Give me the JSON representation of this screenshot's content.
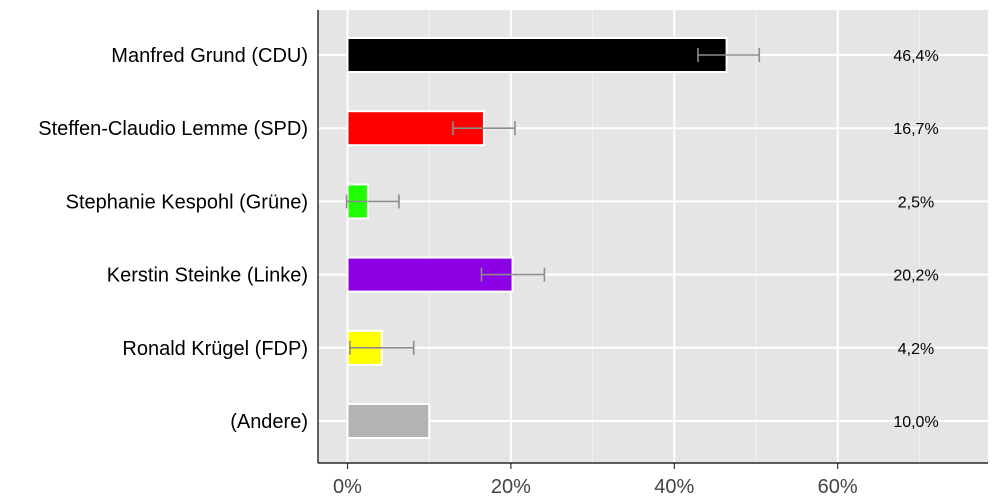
{
  "chart_data": {
    "type": "bar",
    "orientation": "horizontal",
    "categories": [
      "Manfred Grund (CDU)",
      "Steffen-Claudio Lemme (SPD)",
      "Stephanie Kespohl (Grüne)",
      "Kerstin Steinke (Linke)",
      "Ronald Krügel (FDP)",
      "(Andere)"
    ],
    "values": [
      46.4,
      16.7,
      2.5,
      20.2,
      4.2,
      10.0
    ],
    "value_labels": [
      "46,4%",
      "16,7%",
      "2,5%",
      "20,2%",
      "4,2%",
      "10,0%"
    ],
    "error_low": [
      42.9,
      12.9,
      -0.1,
      16.4,
      0.3,
      null
    ],
    "error_high": [
      50.4,
      20.5,
      6.3,
      24.1,
      8.1,
      null
    ],
    "colors": [
      "#000000",
      "#ff0000",
      "#1eff00",
      "#8c00e6",
      "#ffff00",
      "#b3b3b3"
    ],
    "x_ticks": [
      0,
      20,
      40,
      60
    ],
    "x_tick_labels": [
      "0%",
      "20%",
      "40%",
      "60%"
    ],
    "xlim": [
      -3.5,
      78
    ],
    "grid": true,
    "title": "",
    "xlabel": "",
    "ylabel": ""
  }
}
